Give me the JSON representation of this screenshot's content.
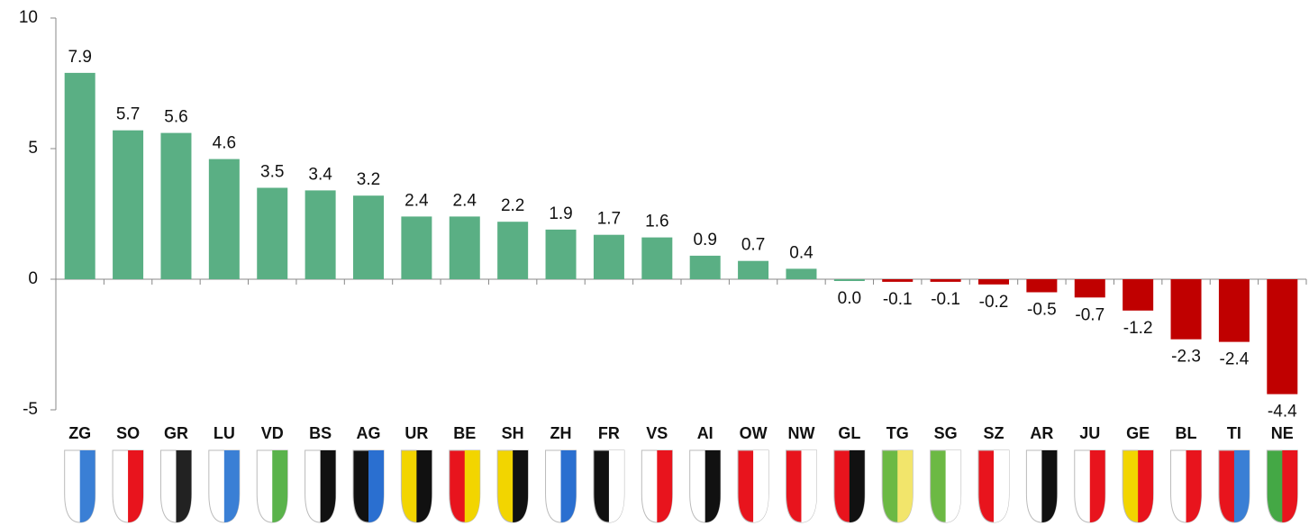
{
  "chart_data": {
    "type": "bar",
    "categories": [
      "ZG",
      "SO",
      "GR",
      "LU",
      "VD",
      "BS",
      "AG",
      "UR",
      "BE",
      "SH",
      "ZH",
      "FR",
      "VS",
      "AI",
      "OW",
      "NW",
      "GL",
      "TG",
      "SG",
      "SZ",
      "AR",
      "JU",
      "GE",
      "BL",
      "TI",
      "NE"
    ],
    "values": [
      7.9,
      5.7,
      5.6,
      4.6,
      3.5,
      3.4,
      3.2,
      2.4,
      2.4,
      2.2,
      1.9,
      1.7,
      1.6,
      0.9,
      0.7,
      0.4,
      0.0,
      -0.1,
      -0.1,
      -0.2,
      -0.5,
      -0.7,
      -1.2,
      -2.3,
      -2.4,
      -4.4
    ],
    "value_labels": [
      "7.9",
      "5.7",
      "5.6",
      "4.6",
      "3.5",
      "3.4",
      "3.2",
      "2.4",
      "2.4",
      "2.2",
      "1.9",
      "1.7",
      "1.6",
      "0.9",
      "0.7",
      "0.4",
      "0.0",
      "-0.1",
      "-0.1",
      "-0.2",
      "-0.5",
      "-0.7",
      "-1.2",
      "-2.3",
      "-2.4",
      "-4.4"
    ],
    "positive_color": "#5aaf84",
    "negative_color": "#c00000",
    "ylim": [
      -5,
      10
    ],
    "yticks": [
      10,
      5,
      0,
      -5
    ],
    "grid": false
  }
}
